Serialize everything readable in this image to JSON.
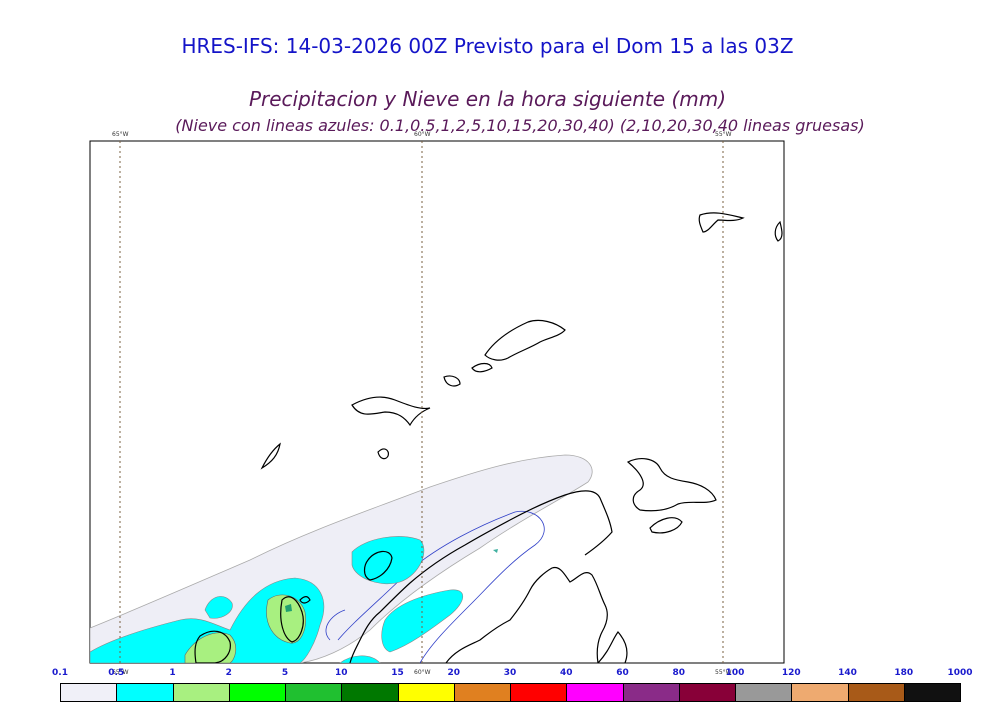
{
  "header": {
    "title": "HRES-IFS: 14-03-2026 00Z Previsto para el Dom 15 a las 03Z",
    "subtitle": "Precipitacion y Nieve en la hora siguiente (mm)",
    "note": "(Nieve con lineas azules: 0.1,0.5,1,2,5,10,15,20,30,40)  (2,10,20,30,40 lineas gruesas)"
  },
  "map": {
    "meridian_labels_top": [
      "65°W",
      "60°W",
      "55°W"
    ],
    "meridian_labels_bottom": [
      "65°W",
      "60°W",
      "55°W"
    ]
  },
  "legend": {
    "thresholds": [
      "0.1",
      "0.5",
      "1",
      "2",
      "5",
      "10",
      "15",
      "20",
      "30",
      "40",
      "60",
      "80",
      "100",
      "120",
      "140",
      "180",
      "1000"
    ],
    "colors": [
      "#f0f0f8",
      "#00ffff",
      "#a8f080",
      "#00ff00",
      "#20c030",
      "#007800",
      "#ffff00",
      "#e08020",
      "#ff0000",
      "#ff00ff",
      "#8a2b88",
      "#880038",
      "#999999",
      "#eeaa70",
      "#a85a18",
      "#111111"
    ]
  }
}
